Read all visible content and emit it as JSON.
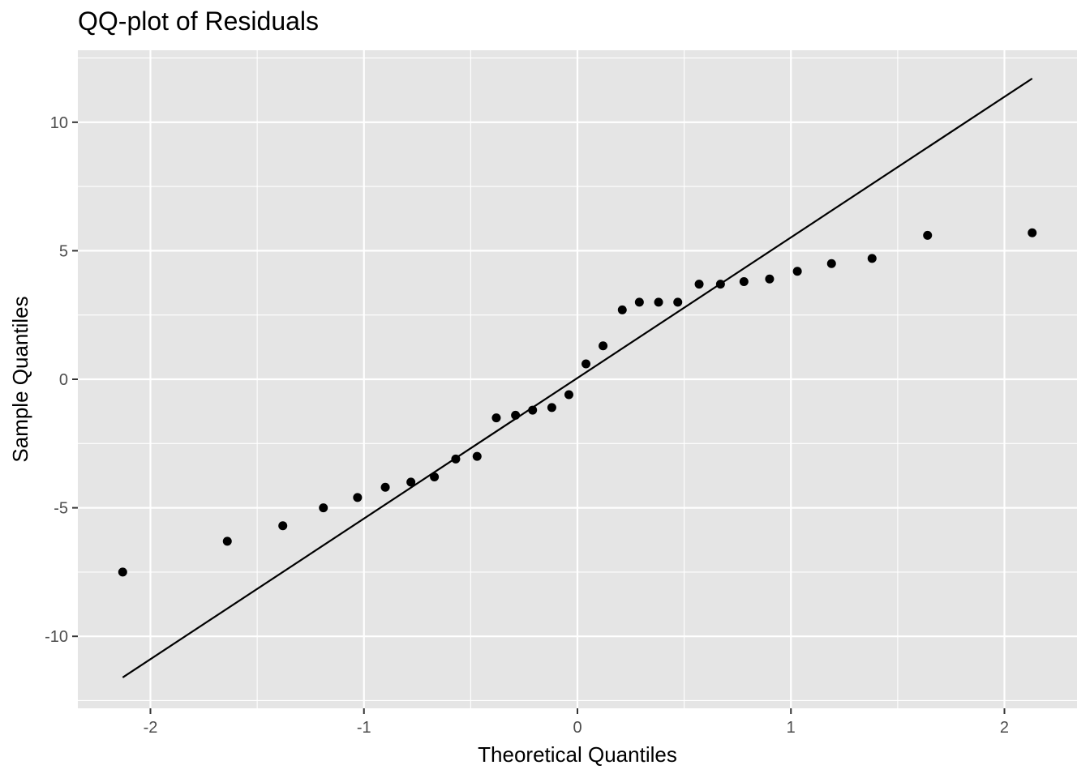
{
  "chart_data": {
    "type": "scatter",
    "title": "QQ-plot of Residuals",
    "xlabel": "Theoretical Quantiles",
    "ylabel": "Sample Quantiles",
    "xlim": [
      -2.34,
      2.34
    ],
    "ylim": [
      -12.8,
      12.8
    ],
    "grid": true,
    "x_ticks": [
      -2,
      -1,
      0,
      1,
      2
    ],
    "x_tick_labels": [
      "-2",
      "-1",
      "0",
      "1",
      "2"
    ],
    "y_ticks": [
      -10,
      -5,
      0,
      5,
      10
    ],
    "y_tick_labels": [
      "-10",
      "-5",
      "0",
      "5",
      "10"
    ],
    "reference_line": {
      "x": [
        -2.13,
        2.13
      ],
      "y": [
        -11.6,
        11.7
      ]
    },
    "series": [
      {
        "points": [
          [
            -2.13,
            -7.5
          ],
          [
            -1.64,
            -6.3
          ],
          [
            -1.38,
            -5.7
          ],
          [
            -1.19,
            -5.0
          ],
          [
            -1.03,
            -4.6
          ],
          [
            -0.9,
            -4.2
          ],
          [
            -0.78,
            -4.0
          ],
          [
            -0.67,
            -3.8
          ],
          [
            -0.57,
            -3.1
          ],
          [
            -0.47,
            -3.0
          ],
          [
            -0.38,
            -1.5
          ],
          [
            -0.29,
            -1.4
          ],
          [
            -0.21,
            -1.2
          ],
          [
            -0.12,
            -1.1
          ],
          [
            -0.04,
            -0.6
          ],
          [
            0.04,
            0.6
          ],
          [
            0.12,
            1.3
          ],
          [
            0.21,
            2.7
          ],
          [
            0.29,
            3.0
          ],
          [
            0.38,
            3.0
          ],
          [
            0.47,
            3.0
          ],
          [
            0.57,
            3.7
          ],
          [
            0.67,
            3.7
          ],
          [
            0.78,
            3.8
          ],
          [
            0.9,
            3.9
          ],
          [
            1.03,
            4.2
          ],
          [
            1.19,
            4.5
          ],
          [
            1.38,
            4.7
          ],
          [
            1.64,
            5.6
          ],
          [
            2.13,
            5.7
          ]
        ]
      }
    ],
    "colors": {
      "panel": "#e5e5e5",
      "grid": "#ffffff",
      "points": "#000000",
      "line": "#000000"
    }
  }
}
